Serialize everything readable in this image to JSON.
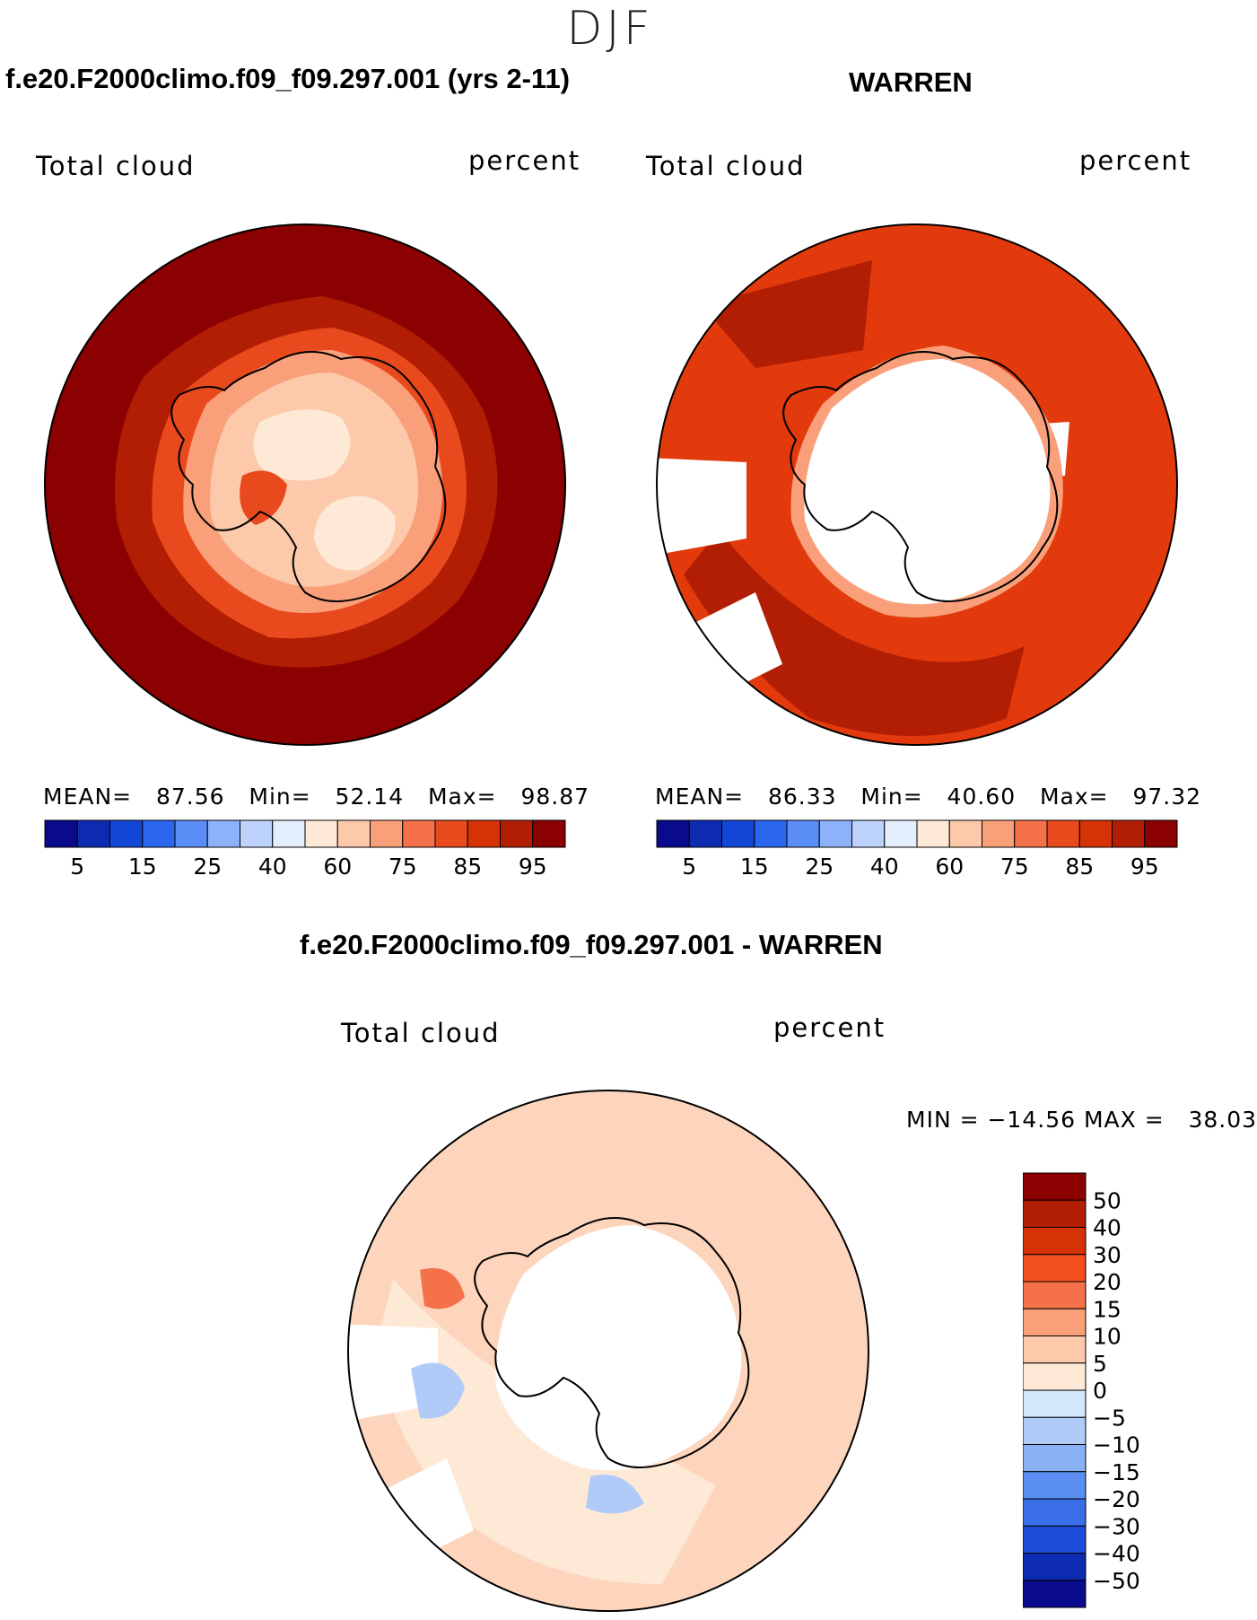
{
  "figure": {
    "season": "DJF"
  },
  "panels": [
    {
      "title": "f.e20.F2000climo.f09_f09.297.001 (yrs 2-11)",
      "variable": "Total cloud",
      "units": "percent",
      "stats": {
        "mean_label": "MEAN=",
        "mean": "87.56",
        "min_label": "Min=",
        "min": "52.14",
        "max_label": "Max=",
        "max": "98.87"
      }
    },
    {
      "title": "WARREN",
      "variable": "Total cloud",
      "units": "percent",
      "stats": {
        "mean_label": "MEAN=",
        "mean": "86.33",
        "min_label": "Min=",
        "min": "40.60",
        "max_label": "Max=",
        "max": "97.32"
      }
    },
    {
      "title": "f.e20.F2000climo.f09_f09.297.001 - WARREN",
      "variable": "Total cloud",
      "units": "percent",
      "stats_text": "MIN = −14.56 MAX =   38.03"
    }
  ],
  "colorbar_abs": {
    "colors": [
      "#0a0a8c",
      "#0c2bb0",
      "#1446d8",
      "#2a66ee",
      "#5a8ef6",
      "#8eb2fa",
      "#bdd2fc",
      "#e3eefe",
      "#fee9d6",
      "#fcc9aa",
      "#f9a07a",
      "#f4714a",
      "#e84a1e",
      "#d63208",
      "#b21e04",
      "#8b0000"
    ],
    "tick_labels": [
      "5",
      "15",
      "25",
      "40",
      "60",
      "75",
      "85",
      "95"
    ]
  },
  "colorbar_diff": {
    "colors": [
      "#8b0000",
      "#b21e04",
      "#d63208",
      "#f4501e",
      "#f4714a",
      "#f9a07a",
      "#fcc9aa",
      "#fee9d6",
      "#d4e8fc",
      "#b0cbf8",
      "#8ab0f4",
      "#5a8ef0",
      "#3a6ee8",
      "#1e4ed8",
      "#0c2bb0",
      "#0a0a8c"
    ],
    "tick_labels": [
      "50",
      "40",
      "30",
      "20",
      "15",
      "10",
      "5",
      "0",
      "−5",
      "−10",
      "−15",
      "−20",
      "−30",
      "−40",
      "−50"
    ]
  },
  "map_colors": {
    "panel1_ocean": "#8b0000",
    "panel1_inner": "#b21e04",
    "panel1_ice": "#fcc9aa",
    "panel1_plateau": "#fee9d6",
    "panel2_ocean": "#e23a0c",
    "panel2_dark": "#b21e04",
    "panel2_missing": "#ffffff",
    "panel3_base": "#fcd5bc",
    "panel3_light": "#fee9d6",
    "panel3_blue": "#b0cbf8"
  }
}
